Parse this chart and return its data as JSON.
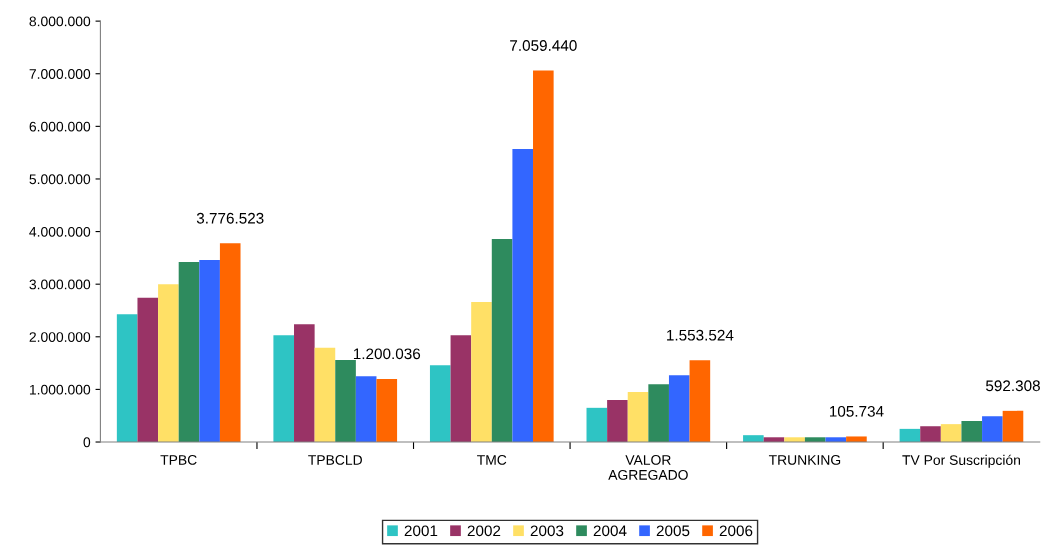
{
  "chart_data": {
    "type": "bar",
    "categories": [
      "TPBC",
      "TPBCLD",
      "TMC",
      "VALOR\nAGREGADO",
      "TRUNKING",
      "TV Por Suscripción"
    ],
    "series": [
      {
        "name": "2001",
        "color": "#2ec4c4",
        "values": [
          2430000,
          2030000,
          1460000,
          650000,
          130000,
          250000
        ]
      },
      {
        "name": "2002",
        "color": "#993366",
        "values": [
          2740000,
          2240000,
          2030000,
          800000,
          90000,
          300000
        ]
      },
      {
        "name": "2003",
        "color": "#ffe066",
        "values": [
          3000000,
          1790000,
          2660000,
          950000,
          90000,
          340000
        ]
      },
      {
        "name": "2004",
        "color": "#2e8b5e",
        "values": [
          3420000,
          1560000,
          3860000,
          1100000,
          90000,
          400000
        ]
      },
      {
        "name": "2005",
        "color": "#3366ff",
        "values": [
          3460000,
          1250000,
          5570000,
          1270000,
          90000,
          490000
        ]
      },
      {
        "name": "2006",
        "color": "#ff6600",
        "values": [
          3776523,
          1200036,
          7059440,
          1553524,
          105734,
          592308
        ],
        "value_labels": [
          "3.776.523",
          "1.200.036",
          "7.059.440",
          "1.553.524",
          "105.734",
          "592.308"
        ]
      }
    ],
    "ylim": [
      0,
      8000000
    ],
    "yticks": [
      {
        "value": 0,
        "label": "0"
      },
      {
        "value": 1000000,
        "label": "1.000.000"
      },
      {
        "value": 2000000,
        "label": "2.000.000"
      },
      {
        "value": 3000000,
        "label": "3.000.000"
      },
      {
        "value": 4000000,
        "label": "4.000.000"
      },
      {
        "value": 5000000,
        "label": "5.000.000"
      },
      {
        "value": 6000000,
        "label": "6.000.000"
      },
      {
        "value": 7000000,
        "label": "7.000.000"
      },
      {
        "value": 8000000,
        "label": "8.000.000"
      }
    ],
    "grid": false,
    "legend": "bottom"
  }
}
